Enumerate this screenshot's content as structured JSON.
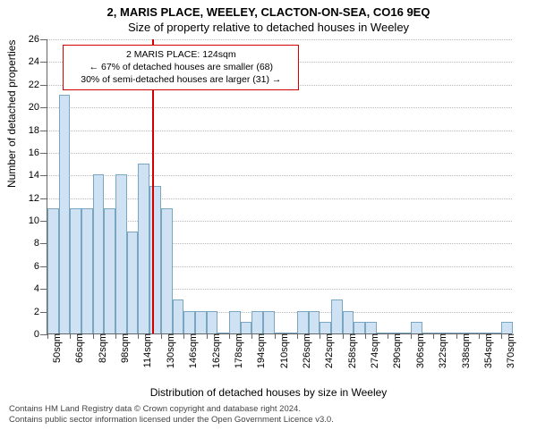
{
  "titles": {
    "line1": "2, MARIS PLACE, WEELEY, CLACTON-ON-SEA, CO16 9EQ",
    "line2": "Size of property relative to detached houses in Weeley"
  },
  "axes": {
    "y_title": "Number of detached properties",
    "x_title": "Distribution of detached houses by size in Weeley",
    "ylim": [
      0,
      26
    ],
    "ytick_step": 2,
    "x_start": 50,
    "x_step_label": 16,
    "x_bins": 41,
    "x_label_suffix": "sqm"
  },
  "style": {
    "bar_fill": "#cfe2f3",
    "bar_border": "#7aa6c2",
    "grid_color": "#b8b8b8",
    "axis_color": "#666666",
    "marker_color": "#d40000",
    "background": "#ffffff",
    "tick_fontsize": 11,
    "title_fontsize": 13,
    "axis_title_fontsize": 12,
    "callout_fontsize": 10.5
  },
  "bars": [
    11,
    21,
    11,
    11,
    14,
    11,
    14,
    9,
    15,
    13,
    11,
    3,
    2,
    2,
    2,
    0,
    2,
    1,
    2,
    2,
    0,
    0,
    2,
    2,
    1,
    3,
    2,
    1,
    1,
    0,
    0,
    0,
    1,
    0,
    0,
    0,
    0,
    0,
    0,
    0,
    1
  ],
  "marker": {
    "x_value": 124,
    "callout": {
      "line1": "2 MARIS PLACE: 124sqm",
      "line2": "← 67% of detached houses are smaller (68)",
      "line3": "30% of semi-detached houses are larger (31) →"
    }
  },
  "footer": {
    "line1": "Contains HM Land Registry data © Crown copyright and database right 2024.",
    "line2": "Contains public sector information licensed under the Open Government Licence v3.0."
  }
}
